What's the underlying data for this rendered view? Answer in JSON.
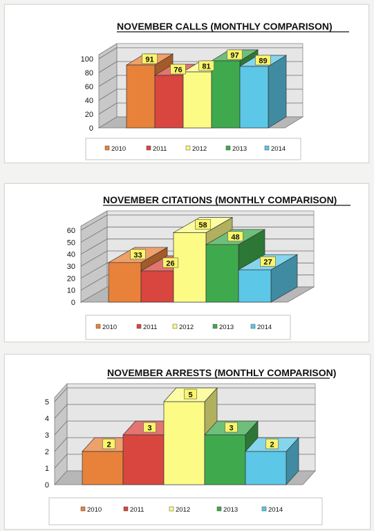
{
  "chart_data": [
    {
      "type": "bar",
      "title": "NOVEMBER CALLS (MONTHLY COMPARISON)",
      "categories": [
        "2010",
        "2011",
        "2012",
        "2013",
        "2014"
      ],
      "values": [
        91,
        76,
        81,
        97,
        89
      ],
      "data_labels": [
        "91",
        "76",
        "81",
        "97",
        "89"
      ],
      "ylim": [
        0,
        100
      ],
      "yticks": [
        "0",
        "20",
        "40",
        "60",
        "80",
        "100"
      ],
      "legend_position": "bottom",
      "grid": true
    },
    {
      "type": "bar",
      "title": "NOVEMBER CITATIONS (MONTHLY COMPARISON)",
      "categories": [
        "2010",
        "2011",
        "2012",
        "2013",
        "2014"
      ],
      "values": [
        33,
        26,
        58,
        48,
        27
      ],
      "data_labels": [
        "33",
        "26",
        "58",
        "48",
        "27"
      ],
      "ylim": [
        0,
        60
      ],
      "yticks": [
        "0",
        "10",
        "20",
        "30",
        "40",
        "50",
        "60"
      ],
      "legend_position": "bottom",
      "grid": true
    },
    {
      "type": "bar",
      "title": "NOVEMBER ARRESTS (MONTHLY COMPARISON)",
      "categories": [
        "2010",
        "2011",
        "2012",
        "2013",
        "2014"
      ],
      "values": [
        2,
        3,
        5,
        3,
        2
      ],
      "data_labels": [
        "2",
        "3",
        "5",
        "3",
        "2"
      ],
      "ylim": [
        0,
        5
      ],
      "yticks": [
        "0",
        "1",
        "2",
        "3",
        "4",
        "5"
      ],
      "legend_position": "bottom",
      "grid": true
    }
  ],
  "colors": {
    "2010": "#e8823a",
    "2011": "#d9463f",
    "2012": "#fbfb86",
    "2013": "#3faa4d",
    "2014": "#5cc7e6",
    "label_box": "#fbf56a"
  }
}
